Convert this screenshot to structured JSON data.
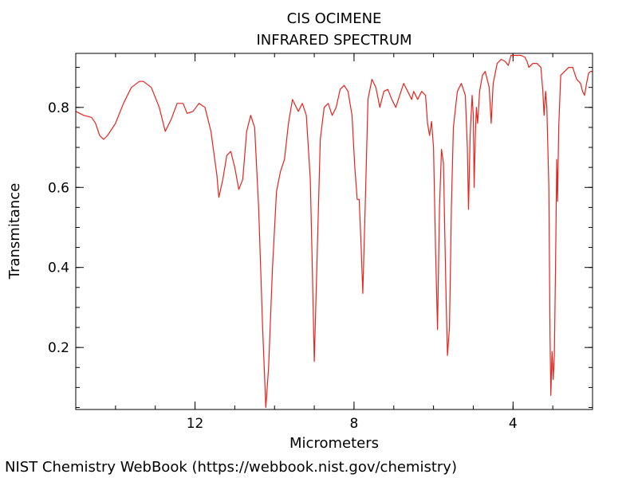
{
  "chart_data": {
    "type": "line",
    "title": "CIS OCIMENE",
    "subtitle": "INFRARED SPECTRUM",
    "xlabel": "Micrometers",
    "ylabel": "Transmitance",
    "x_reversed": true,
    "xlim": [
      15.0,
      2.0
    ],
    "ylim": [
      0.045,
      0.935
    ],
    "xticks": [
      {
        "value": 12,
        "label": "12"
      },
      {
        "value": 8,
        "label": "8"
      },
      {
        "value": 4,
        "label": "4"
      }
    ],
    "yticks": [
      {
        "value": 0.2,
        "label": "0.2"
      },
      {
        "value": 0.4,
        "label": "0.4"
      },
      {
        "value": 0.6,
        "label": "0.6"
      },
      {
        "value": 0.8,
        "label": "0.8"
      }
    ],
    "x_minor_step": 1,
    "y_minor_step": 0.05,
    "grid": false,
    "line_color": "#e8231c",
    "series": [
      {
        "name": "",
        "points": [
          [
            15.0,
            0.79
          ],
          [
            14.8,
            0.78
          ],
          [
            14.6,
            0.775
          ],
          [
            14.5,
            0.76
          ],
          [
            14.4,
            0.73
          ],
          [
            14.3,
            0.72
          ],
          [
            14.2,
            0.73
          ],
          [
            14.0,
            0.76
          ],
          [
            13.8,
            0.81
          ],
          [
            13.6,
            0.85
          ],
          [
            13.4,
            0.865
          ],
          [
            13.3,
            0.865
          ],
          [
            13.1,
            0.85
          ],
          [
            12.9,
            0.8
          ],
          [
            12.75,
            0.74
          ],
          [
            12.6,
            0.77
          ],
          [
            12.45,
            0.81
          ],
          [
            12.3,
            0.81
          ],
          [
            12.2,
            0.785
          ],
          [
            12.05,
            0.79
          ],
          [
            11.9,
            0.81
          ],
          [
            11.75,
            0.8
          ],
          [
            11.6,
            0.74
          ],
          [
            11.45,
            0.63
          ],
          [
            11.4,
            0.575
          ],
          [
            11.3,
            0.62
          ],
          [
            11.2,
            0.68
          ],
          [
            11.1,
            0.69
          ],
          [
            11.0,
            0.65
          ],
          [
            10.9,
            0.595
          ],
          [
            10.8,
            0.62
          ],
          [
            10.7,
            0.74
          ],
          [
            10.6,
            0.78
          ],
          [
            10.5,
            0.75
          ],
          [
            10.4,
            0.55
          ],
          [
            10.3,
            0.25
          ],
          [
            10.22,
            0.05
          ],
          [
            10.15,
            0.15
          ],
          [
            10.05,
            0.4
          ],
          [
            9.95,
            0.59
          ],
          [
            9.85,
            0.64
          ],
          [
            9.75,
            0.67
          ],
          [
            9.65,
            0.76
          ],
          [
            9.55,
            0.82
          ],
          [
            9.45,
            0.8
          ],
          [
            9.4,
            0.79
          ],
          [
            9.3,
            0.81
          ],
          [
            9.2,
            0.78
          ],
          [
            9.1,
            0.62
          ],
          [
            9.05,
            0.4
          ],
          [
            9.0,
            0.165
          ],
          [
            8.95,
            0.35
          ],
          [
            8.85,
            0.72
          ],
          [
            8.75,
            0.8
          ],
          [
            8.65,
            0.81
          ],
          [
            8.55,
            0.78
          ],
          [
            8.45,
            0.8
          ],
          [
            8.35,
            0.845
          ],
          [
            8.25,
            0.855
          ],
          [
            8.15,
            0.84
          ],
          [
            8.05,
            0.78
          ],
          [
            7.98,
            0.65
          ],
          [
            7.92,
            0.57
          ],
          [
            7.87,
            0.57
          ],
          [
            7.82,
            0.45
          ],
          [
            7.78,
            0.335
          ],
          [
            7.72,
            0.55
          ],
          [
            7.65,
            0.82
          ],
          [
            7.55,
            0.87
          ],
          [
            7.45,
            0.85
          ],
          [
            7.35,
            0.8
          ],
          [
            7.25,
            0.84
          ],
          [
            7.15,
            0.845
          ],
          [
            7.05,
            0.82
          ],
          [
            6.95,
            0.8
          ],
          [
            6.85,
            0.83
          ],
          [
            6.75,
            0.86
          ],
          [
            6.65,
            0.84
          ],
          [
            6.55,
            0.82
          ],
          [
            6.5,
            0.84
          ],
          [
            6.4,
            0.82
          ],
          [
            6.3,
            0.84
          ],
          [
            6.2,
            0.83
          ],
          [
            6.15,
            0.76
          ],
          [
            6.1,
            0.73
          ],
          [
            6.05,
            0.765
          ],
          [
            6.0,
            0.7
          ],
          [
            5.95,
            0.45
          ],
          [
            5.9,
            0.245
          ],
          [
            5.85,
            0.55
          ],
          [
            5.8,
            0.695
          ],
          [
            5.75,
            0.66
          ],
          [
            5.72,
            0.5
          ],
          [
            5.68,
            0.3
          ],
          [
            5.65,
            0.18
          ],
          [
            5.6,
            0.25
          ],
          [
            5.55,
            0.55
          ],
          [
            5.5,
            0.75
          ],
          [
            5.4,
            0.84
          ],
          [
            5.3,
            0.86
          ],
          [
            5.2,
            0.83
          ],
          [
            5.15,
            0.7
          ],
          [
            5.12,
            0.545
          ],
          [
            5.08,
            0.73
          ],
          [
            5.03,
            0.83
          ],
          [
            5.0,
            0.78
          ],
          [
            4.98,
            0.6
          ],
          [
            4.95,
            0.73
          ],
          [
            4.92,
            0.8
          ],
          [
            4.89,
            0.76
          ],
          [
            4.84,
            0.84
          ],
          [
            4.77,
            0.88
          ],
          [
            4.7,
            0.89
          ],
          [
            4.6,
            0.85
          ],
          [
            4.55,
            0.76
          ],
          [
            4.5,
            0.86
          ],
          [
            4.4,
            0.91
          ],
          [
            4.3,
            0.92
          ],
          [
            4.2,
            0.915
          ],
          [
            4.12,
            0.905
          ],
          [
            4.05,
            0.93
          ],
          [
            4.0,
            0.93
          ],
          [
            3.9,
            0.93
          ],
          [
            3.8,
            0.93
          ],
          [
            3.7,
            0.925
          ],
          [
            3.65,
            0.915
          ],
          [
            3.6,
            0.9
          ],
          [
            3.5,
            0.91
          ],
          [
            3.4,
            0.91
          ],
          [
            3.3,
            0.9
          ],
          [
            3.25,
            0.84
          ],
          [
            3.22,
            0.78
          ],
          [
            3.18,
            0.84
          ],
          [
            3.15,
            0.8
          ],
          [
            3.1,
            0.6
          ],
          [
            3.07,
            0.23
          ],
          [
            3.05,
            0.08
          ],
          [
            3.02,
            0.19
          ],
          [
            2.99,
            0.12
          ],
          [
            2.96,
            0.18
          ],
          [
            2.93,
            0.4
          ],
          [
            2.9,
            0.67
          ],
          [
            2.88,
            0.565
          ],
          [
            2.85,
            0.75
          ],
          [
            2.8,
            0.88
          ],
          [
            2.7,
            0.89
          ],
          [
            2.6,
            0.9
          ],
          [
            2.5,
            0.9
          ],
          [
            2.4,
            0.87
          ],
          [
            2.3,
            0.86
          ],
          [
            2.25,
            0.84
          ],
          [
            2.2,
            0.83
          ],
          [
            2.15,
            0.86
          ],
          [
            2.1,
            0.885
          ],
          [
            2.05,
            0.89
          ],
          [
            2.0,
            0.89
          ]
        ]
      }
    ]
  },
  "footer": {
    "credit": "NIST Chemistry WebBook (https://webbook.nist.gov/chemistry)"
  }
}
